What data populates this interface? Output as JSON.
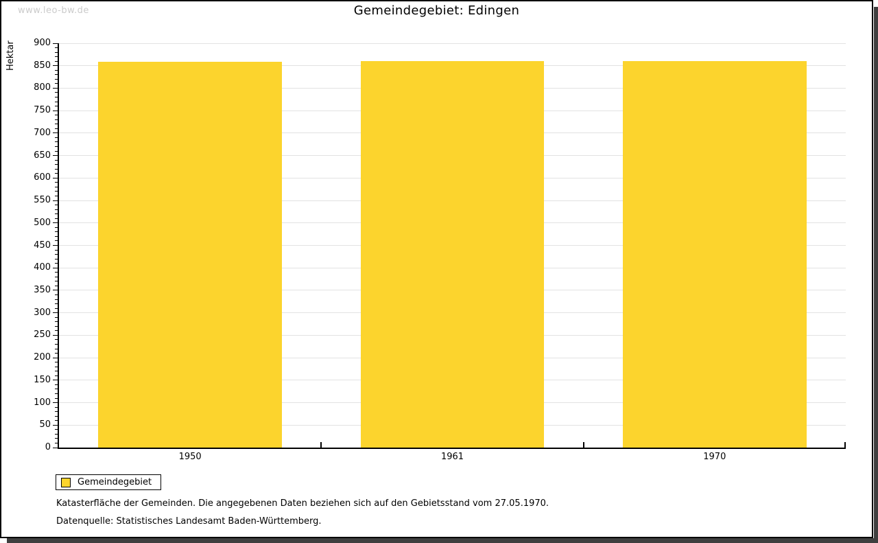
{
  "watermark": "www.leo-bw.de",
  "title": "Gemeindegebiet: Edingen",
  "chart_data": {
    "type": "bar",
    "title": "Gemeindegebiet: Edingen",
    "categories": [
      "1950",
      "1961",
      "1970"
    ],
    "series": [
      {
        "name": "Gemeindegebiet",
        "values": [
          859,
          860,
          860
        ]
      }
    ],
    "xlabel": "",
    "ylabel": "Hektar",
    "ylim": [
      0,
      900
    ],
    "y_major_step": 50,
    "y_minor_step": 10,
    "y_tick_labels": [
      "0",
      "50",
      "100",
      "150",
      "200",
      "250",
      "300",
      "350",
      "400",
      "450",
      "500",
      "550",
      "600",
      "650",
      "700",
      "750",
      "800",
      "850",
      "900"
    ],
    "grid": true,
    "bar_color": "#fcd42d",
    "legend_position": "bottom-left"
  },
  "legend": {
    "items": [
      {
        "label": "Gemeindegebiet",
        "color": "#fcd42d"
      }
    ]
  },
  "footer": {
    "line1": "Katasterfläche der Gemeinden. Die angegebenen Daten beziehen sich auf den Gebietsstand vom 27.05.1970.",
    "line2": "Datenquelle: Statistisches Landesamt Baden-Württemberg."
  },
  "colors": {
    "bar": "#fcd42d",
    "gridline": "#e2e2e2",
    "axis": "#000000",
    "watermark": "#cbcbcb",
    "shadow": "#3f3f3f",
    "background": "#ffffff"
  }
}
